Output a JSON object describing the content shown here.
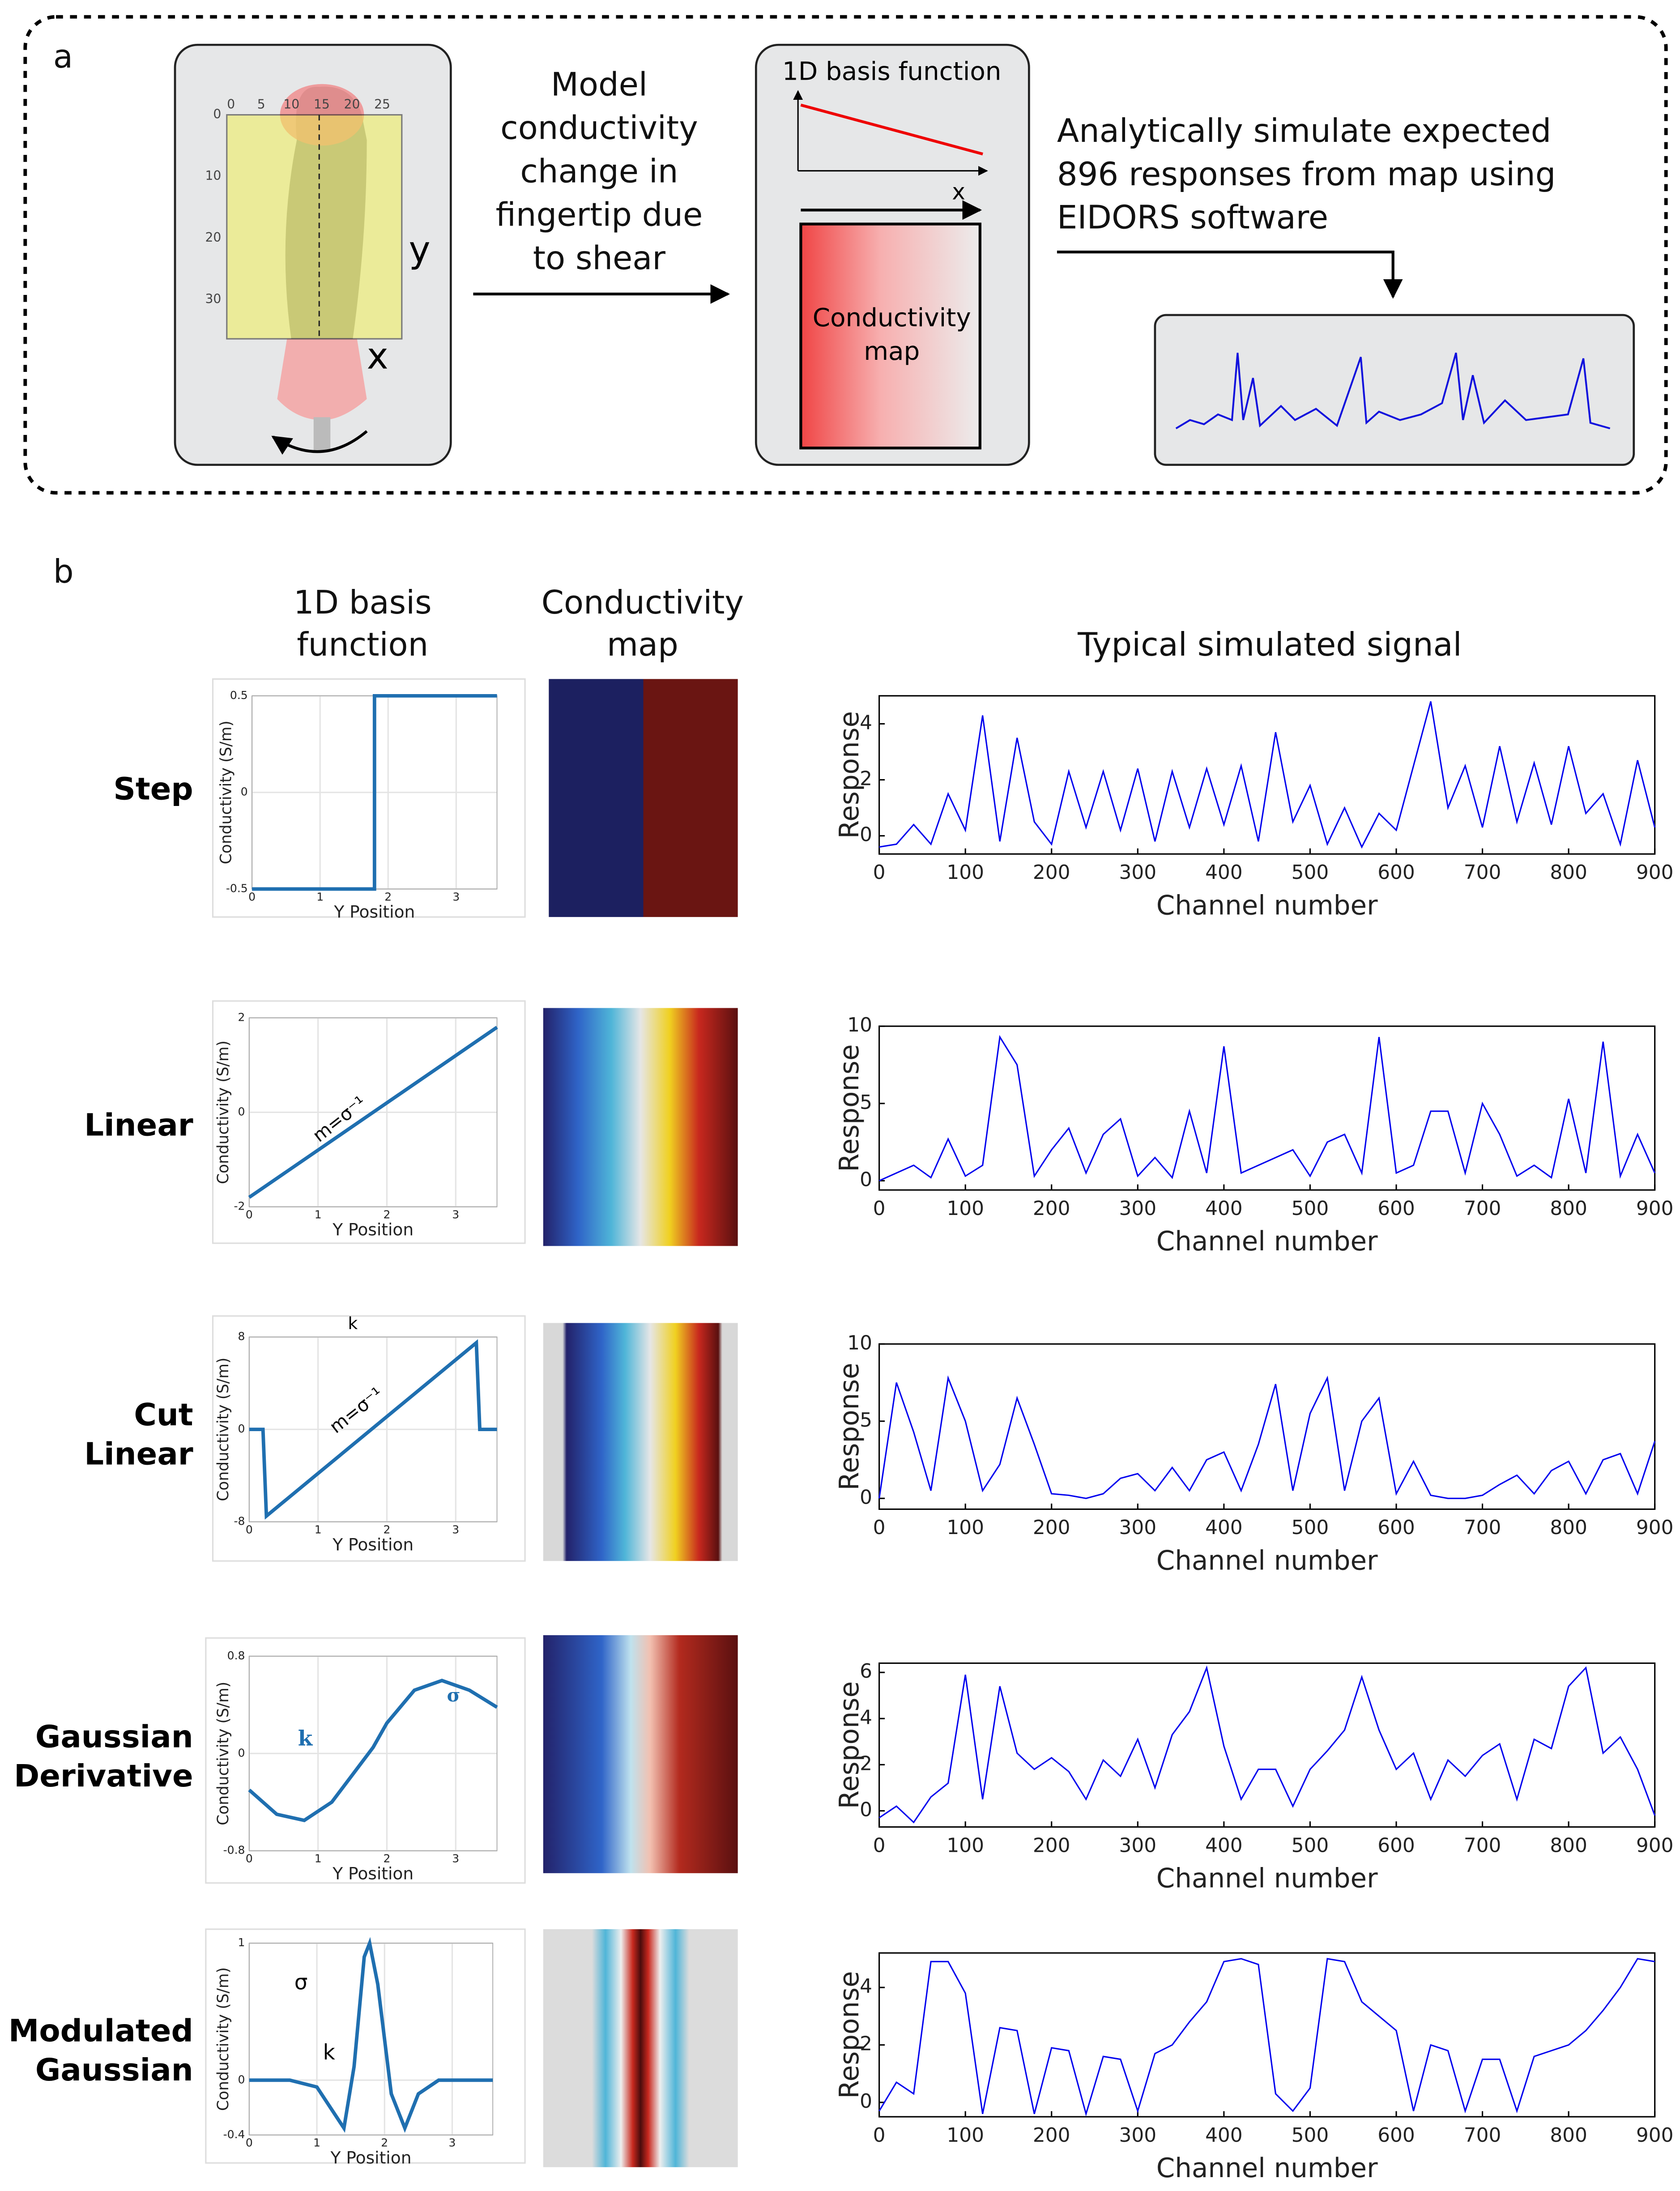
{
  "panel_a": {
    "label": "a",
    "finger_x_ticks": [
      0,
      5,
      10,
      15,
      20,
      25
    ],
    "finger_y_ticks": [
      0,
      10,
      20,
      30
    ],
    "axis_x": "x",
    "axis_y": "y",
    "middle_text": [
      "Model",
      "conductivity",
      "change in",
      "fingertip due",
      "to shear"
    ],
    "basis_title": "1D basis function",
    "basis_axis": "x",
    "map_text": [
      "Conductivity",
      "map"
    ],
    "right_text": [
      "Analytically simulate expected",
      "896 responses from map using",
      "EIDORS software"
    ]
  },
  "panel_b": {
    "label": "b",
    "headers": [
      [
        "1D basis",
        "function"
      ],
      [
        "Conductivity",
        "map"
      ],
      [
        "Typical simulated signal"
      ]
    ],
    "rows": [
      {
        "label": [
          "Step"
        ]
      },
      {
        "label": [
          "Linear"
        ]
      },
      {
        "label": [
          "Cut",
          "Linear"
        ]
      },
      {
        "label": [
          "Gaussian",
          "Derivative"
        ]
      },
      {
        "label": [
          "Modulated",
          "Gaussian"
        ]
      }
    ]
  },
  "chart_data": [
    {
      "type": "line",
      "y_label": "Conductivity (S/m)",
      "x_label": "Y Position",
      "x": [
        0,
        1.8,
        1.8,
        3.6
      ],
      "values": [
        -0.5,
        -0.5,
        0.5,
        0.5
      ],
      "xlim": [
        0,
        3.6
      ],
      "ylim": [
        -0.5,
        0.5
      ],
      "xticks": [
        0,
        1,
        2,
        3
      ],
      "yticks": [
        -0.5,
        0,
        0.5
      ],
      "grid": true,
      "color": "#1f6fb0"
    },
    {
      "type": "line",
      "y_label": "Response",
      "x_label": "Channel number",
      "x": [
        0,
        20,
        40,
        60,
        80,
        100,
        120,
        140,
        160,
        180,
        200,
        220,
        240,
        260,
        280,
        300,
        320,
        340,
        360,
        380,
        400,
        420,
        440,
        460,
        480,
        500,
        520,
        540,
        560,
        580,
        600,
        620,
        640,
        660,
        680,
        700,
        720,
        740,
        760,
        780,
        800,
        820,
        840,
        860,
        880,
        900
      ],
      "values": [
        -0.4,
        -0.3,
        0.4,
        -0.3,
        1.5,
        0.2,
        4.3,
        -0.2,
        3.5,
        0.5,
        -0.3,
        2.3,
        0.3,
        2.3,
        0.2,
        2.4,
        -0.2,
        2.3,
        0.3,
        2.4,
        0.4,
        2.5,
        -0.2,
        3.7,
        0.5,
        1.8,
        -0.3,
        1.0,
        -0.4,
        0.8,
        0.2,
        2.5,
        4.8,
        1.0,
        2.5,
        0.3,
        3.2,
        0.5,
        2.6,
        0.4,
        3.2,
        0.8,
        1.5,
        -0.3,
        2.7,
        0.3
      ],
      "xlim": [
        0,
        900
      ],
      "ylim": [
        -0.65,
        5
      ],
      "xticks": [
        0,
        100,
        200,
        300,
        400,
        500,
        600,
        700,
        800,
        900
      ],
      "yticks": [
        0,
        2,
        4
      ],
      "grid": false,
      "color": "#0000ee"
    },
    {
      "type": "line",
      "y_label": "Conductivity (S/m)",
      "x_label": "Y Position",
      "x": [
        0,
        3.6
      ],
      "values": [
        -1.8,
        1.8
      ],
      "xlim": [
        0,
        3.6
      ],
      "ylim": [
        -2,
        2
      ],
      "xticks": [
        0,
        1,
        2,
        3
      ],
      "yticks": [
        -2,
        0,
        2
      ],
      "grid": true,
      "color": "#1f6fb0",
      "annotations": [
        "m=σ⁻¹"
      ]
    },
    {
      "type": "line",
      "y_label": "Response",
      "x_label": "Channel number",
      "x": [
        0,
        20,
        40,
        60,
        80,
        100,
        120,
        140,
        160,
        180,
        200,
        220,
        240,
        260,
        280,
        300,
        320,
        340,
        360,
        380,
        400,
        420,
        440,
        460,
        480,
        500,
        520,
        540,
        560,
        580,
        600,
        620,
        640,
        660,
        680,
        700,
        720,
        740,
        760,
        780,
        800,
        820,
        840,
        860,
        880,
        900
      ],
      "values": [
        0,
        0.5,
        1,
        0.2,
        2.7,
        0.3,
        1,
        9.3,
        7.5,
        0.3,
        2,
        3.4,
        0.5,
        3,
        4,
        0.3,
        1.5,
        0.2,
        4.5,
        0.5,
        8.7,
        0.5,
        1,
        1.5,
        2,
        0.3,
        2.5,
        3,
        0.5,
        9.3,
        0.5,
        1,
        4.5,
        4.5,
        0.5,
        5,
        3,
        0.3,
        1,
        0.2,
        5.3,
        0.5,
        9,
        0.3,
        3,
        0.5
      ],
      "xlim": [
        0,
        900
      ],
      "ylim": [
        -0.6,
        10
      ],
      "xticks": [
        0,
        100,
        200,
        300,
        400,
        500,
        600,
        700,
        800,
        900
      ],
      "yticks": [
        0,
        5,
        10
      ],
      "grid": false,
      "color": "#0000ee"
    },
    {
      "type": "line",
      "y_label": "Conductivity (S/m)",
      "x_label": "Y Position",
      "x": [
        0,
        0.2,
        0.25,
        3.3,
        3.35,
        3.6
      ],
      "values": [
        0,
        0,
        -7.5,
        7.5,
        0,
        0
      ],
      "xlim": [
        0,
        3.6
      ],
      "ylim": [
        -8,
        8
      ],
      "xticks": [
        0,
        1,
        2,
        3
      ],
      "yticks": [
        -8,
        0,
        8
      ],
      "grid": true,
      "color": "#1f6fb0",
      "annotations": [
        "k",
        "m=σ⁻¹"
      ]
    },
    {
      "type": "line",
      "y_label": "Response",
      "x_label": "Channel number",
      "x": [
        0,
        20,
        40,
        60,
        80,
        100,
        120,
        140,
        160,
        180,
        200,
        220,
        240,
        260,
        280,
        300,
        320,
        340,
        360,
        380,
        400,
        420,
        440,
        460,
        480,
        500,
        520,
        540,
        560,
        580,
        600,
        620,
        640,
        660,
        680,
        700,
        720,
        740,
        760,
        780,
        800,
        820,
        840,
        860,
        880,
        900
      ],
      "values": [
        0,
        7.5,
        4.3,
        0.5,
        7.8,
        5,
        0.5,
        2.2,
        6.5,
        3.5,
        0.3,
        0.2,
        0,
        0.3,
        1.3,
        1.6,
        0.5,
        2,
        0.5,
        2.5,
        3,
        0.5,
        3.5,
        7.4,
        0.5,
        5.5,
        7.8,
        0.5,
        5,
        6.5,
        0.3,
        2.4,
        0.2,
        0,
        0,
        0.2,
        0.9,
        1.5,
        0.3,
        1.8,
        2.4,
        0.3,
        2.5,
        2.9,
        0.3,
        3.7
      ],
      "xlim": [
        0,
        900
      ],
      "ylim": [
        -0.7,
        10
      ],
      "xticks": [
        0,
        100,
        200,
        300,
        400,
        500,
        600,
        700,
        800,
        900
      ],
      "yticks": [
        0,
        5,
        10
      ],
      "grid": false,
      "color": "#0000ee"
    },
    {
      "type": "line",
      "y_label": "Conductivity (S/m)",
      "x_label": "Y Position",
      "x": [
        0,
        0.4,
        0.8,
        1.2,
        1.6,
        1.8,
        2.0,
        2.4,
        2.8,
        3.2,
        3.6
      ],
      "values": [
        -0.3,
        -0.5,
        -0.55,
        -0.4,
        -0.1,
        0.05,
        0.25,
        0.52,
        0.6,
        0.52,
        0.38
      ],
      "xlim": [
        0,
        3.6
      ],
      "ylim": [
        -0.8,
        0.8
      ],
      "xticks": [
        0,
        1,
        2,
        3
      ],
      "yticks": [
        -0.8,
        0,
        0.8
      ],
      "grid": true,
      "color": "#1f6fb0",
      "annotations": [
        "k",
        "σ"
      ]
    },
    {
      "type": "line",
      "y_label": "Response",
      "x_label": "Channel number",
      "x": [
        0,
        20,
        40,
        60,
        80,
        100,
        120,
        140,
        160,
        180,
        200,
        220,
        240,
        260,
        280,
        300,
        320,
        340,
        360,
        380,
        400,
        420,
        440,
        460,
        480,
        500,
        520,
        540,
        560,
        580,
        600,
        620,
        640,
        660,
        680,
        700,
        720,
        740,
        760,
        780,
        800,
        820,
        840,
        860,
        880,
        900
      ],
      "values": [
        -0.3,
        0.2,
        -0.5,
        0.6,
        1.2,
        5.9,
        0.5,
        5.4,
        2.5,
        1.8,
        2.3,
        1.7,
        0.5,
        2.2,
        1.5,
        3.1,
        1,
        3.3,
        4.3,
        6.2,
        2.8,
        0.5,
        1.8,
        1.8,
        0.2,
        1.8,
        2.6,
        3.5,
        5.8,
        3.5,
        1.8,
        2.5,
        0.5,
        2.2,
        1.5,
        2.4,
        2.9,
        0.5,
        3.1,
        2.7,
        5.4,
        6.2,
        2.5,
        3.2,
        1.8,
        -0.2
      ],
      "xlim": [
        0,
        900
      ],
      "ylim": [
        -0.7,
        6.4
      ],
      "xticks": [
        0,
        100,
        200,
        300,
        400,
        500,
        600,
        700,
        800,
        900
      ],
      "yticks": [
        0,
        2,
        4,
        6
      ],
      "grid": false,
      "color": "#0000ee"
    },
    {
      "type": "line",
      "y_label": "Conductivity (S/m)",
      "x_label": "Y Position",
      "x": [
        0,
        0.6,
        1.0,
        1.2,
        1.4,
        1.55,
        1.7,
        1.78,
        1.9,
        2.1,
        2.3,
        2.5,
        2.8,
        3.6
      ],
      "values": [
        0,
        0,
        -0.05,
        -0.2,
        -0.35,
        0.1,
        0.9,
        1,
        0.7,
        -0.1,
        -0.35,
        -0.1,
        0,
        0
      ],
      "xlim": [
        0,
        3.6
      ],
      "ylim": [
        -0.4,
        1
      ],
      "xticks": [
        0,
        1,
        2,
        3
      ],
      "yticks": [
        -0.4,
        0,
        1
      ],
      "grid": true,
      "color": "#1f6fb0",
      "annotations": [
        "σ",
        "k"
      ]
    },
    {
      "type": "line",
      "y_label": "Response",
      "x_label": "Channel number",
      "x": [
        0,
        20,
        40,
        60,
        80,
        100,
        120,
        140,
        160,
        180,
        200,
        220,
        240,
        260,
        280,
        300,
        320,
        340,
        360,
        380,
        400,
        420,
        440,
        460,
        480,
        500,
        520,
        540,
        560,
        580,
        600,
        620,
        640,
        660,
        680,
        700,
        720,
        740,
        760,
        780,
        800,
        820,
        840,
        860,
        880,
        900
      ],
      "values": [
        -0.3,
        0.7,
        0.3,
        4.9,
        4.9,
        3.8,
        -0.4,
        2.6,
        2.5,
        -0.4,
        1.9,
        1.8,
        -0.4,
        1.6,
        1.5,
        -0.3,
        1.7,
        2,
        2.8,
        3.5,
        4.9,
        5,
        4.8,
        0.3,
        -0.3,
        0.5,
        5,
        4.9,
        3.5,
        3,
        2.5,
        -0.3,
        2,
        1.8,
        -0.3,
        1.5,
        1.5,
        -0.3,
        1.6,
        1.8,
        2,
        2.5,
        3.2,
        4,
        5,
        4.9
      ],
      "xlim": [
        0,
        900
      ],
      "ylim": [
        -0.5,
        5.2
      ],
      "xticks": [
        0,
        100,
        200,
        300,
        400,
        500,
        600,
        700,
        800,
        900
      ],
      "yticks": [
        0,
        2,
        4
      ],
      "grid": false,
      "color": "#0000ee"
    }
  ]
}
